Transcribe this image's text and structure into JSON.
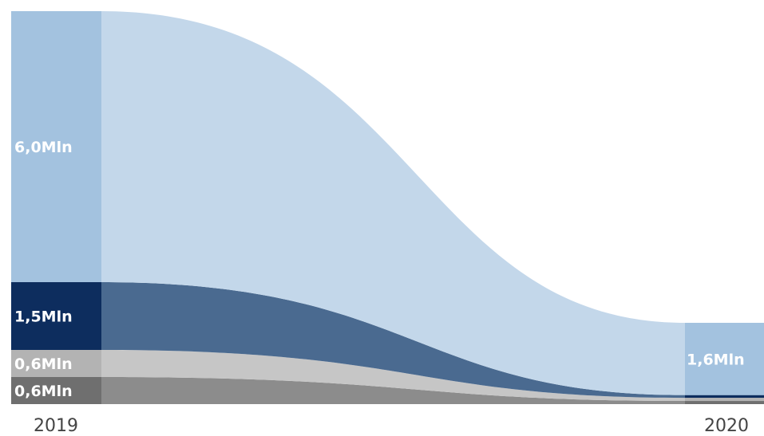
{
  "chart_data": {
    "type": "area",
    "x": [
      "2019",
      "2020"
    ],
    "series": [
      {
        "values": [
          0.6,
          0.07
        ],
        "label_2019": "0,6Mln",
        "label_2020": "",
        "colors": {
          "bar": "#6f6f6f",
          "flow": "#8c8c8c"
        }
      },
      {
        "values": [
          0.6,
          0.07
        ],
        "label_2019": "0,6Mln",
        "label_2020": "",
        "colors": {
          "bar": "#b3b3b3",
          "flow": "#c6c6c6"
        }
      },
      {
        "values": [
          1.5,
          0.06
        ],
        "label_2019": "1,5Mln",
        "label_2020": "",
        "colors": {
          "bar": "#0d2d5e",
          "flow": "#4a6a90"
        }
      },
      {
        "values": [
          6.0,
          1.6
        ],
        "label_2019": "6,0Mln",
        "label_2020": "1,6Mln",
        "colors": {
          "bar": "#a3c2df",
          "flow": "#c3d7ea"
        }
      }
    ],
    "xlabel": "",
    "ylabel": "",
    "ylim": [
      0,
      8.7
    ],
    "grid": false,
    "legend": "none"
  }
}
